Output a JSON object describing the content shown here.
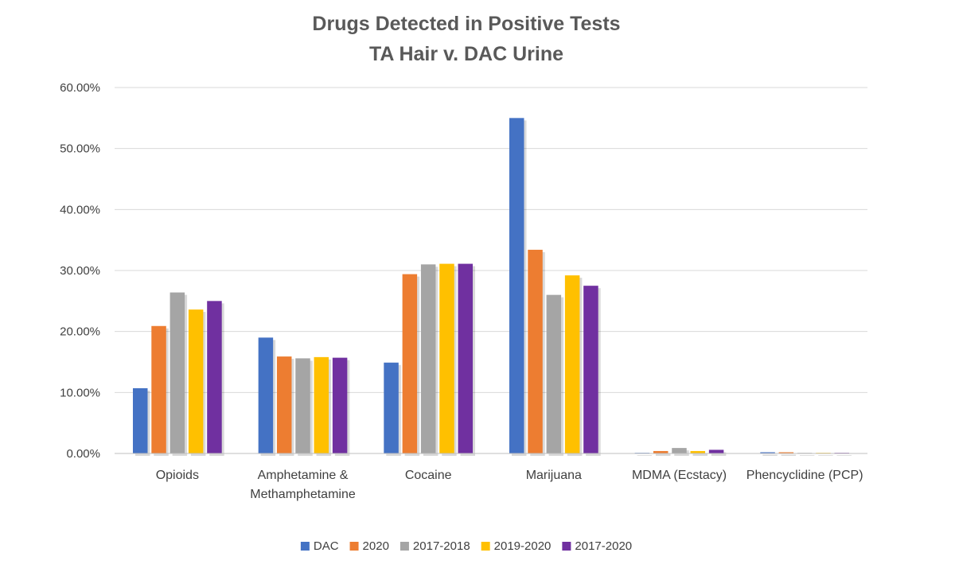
{
  "chart_data": {
    "type": "bar",
    "title": "Drugs Detected in Positive Tests",
    "subtitle": "TA Hair v. DAC Urine",
    "xlabel": "",
    "ylabel": "",
    "y_tick_labels": [
      "0.00%",
      "10.00%",
      "20.00%",
      "30.00%",
      "40.00%",
      "50.00%",
      "60.00%"
    ],
    "y_ticks": [
      0,
      10,
      20,
      30,
      40,
      50,
      60
    ],
    "ylim": [
      0,
      60
    ],
    "grid": true,
    "legend_position": "bottom",
    "categories": [
      [
        "Opioids"
      ],
      [
        "Amphetamine &",
        "Methamphetamine"
      ],
      [
        "Cocaine"
      ],
      [
        "Marijuana"
      ],
      [
        "MDMA (Ecstacy)"
      ],
      [
        "Phencyclidine (PCP)"
      ]
    ],
    "series": [
      {
        "name": "DAC",
        "color": "#4472C4",
        "values": [
          10.7,
          19.0,
          14.9,
          55.0,
          0.1,
          0.2
        ]
      },
      {
        "name": "2020",
        "color": "#ED7D31",
        "values": [
          20.9,
          15.9,
          29.4,
          33.4,
          0.4,
          0.2
        ]
      },
      {
        "name": "2017-2018",
        "color": "#A5A5A5",
        "values": [
          26.4,
          15.6,
          31.0,
          26.0,
          0.9,
          0.0
        ]
      },
      {
        "name": "2019-2020",
        "color": "#FFC000",
        "values": [
          23.6,
          15.8,
          31.1,
          29.2,
          0.4,
          0.0
        ]
      },
      {
        "name": "2017-2020",
        "color": "#7030A0",
        "values": [
          25.0,
          15.7,
          31.1,
          27.5,
          0.6,
          0.0
        ]
      }
    ]
  }
}
